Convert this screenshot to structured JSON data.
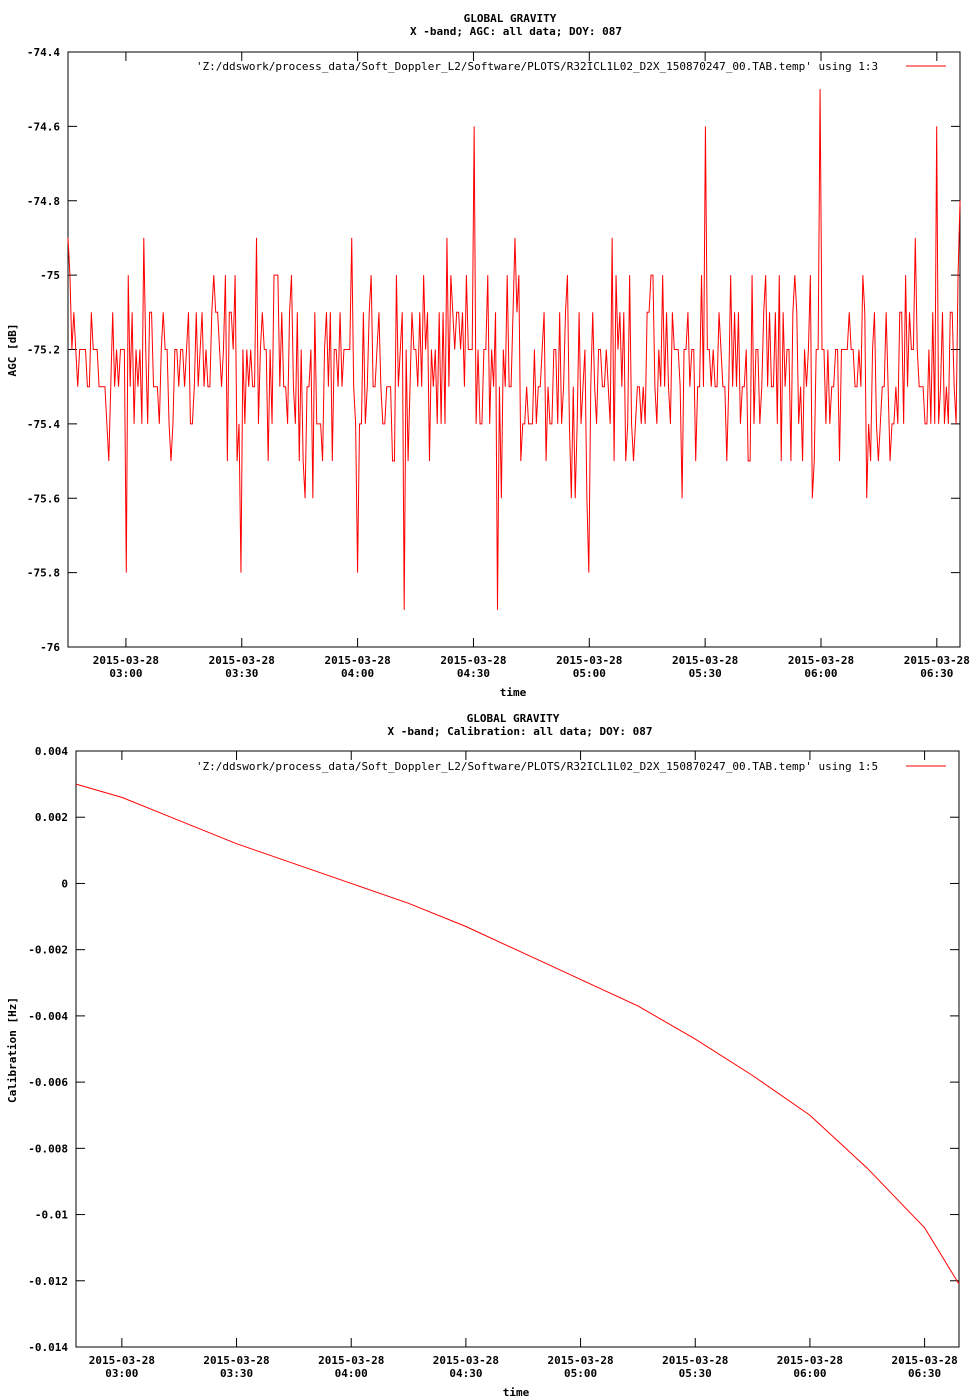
{
  "chart_data": [
    {
      "type": "line",
      "title": "GLOBAL GRAVITY",
      "subtitle": "X -band; AGC: all data; DOY: 087",
      "xlabel": "time",
      "ylabel": "AGC [dB]",
      "ylim": [
        -76,
        -74.4
      ],
      "yticks": [
        -74.4,
        -74.6,
        -74.8,
        -75,
        -75.2,
        -75.4,
        -75.6,
        -75.8,
        -76
      ],
      "ytick_labels": [
        "-74.4",
        "-74.6",
        "-74.8",
        "-75",
        "-75.2",
        "-75.4",
        "-75.6",
        "-75.8",
        "-76"
      ],
      "x_range_hours": [
        2.75,
        6.6
      ],
      "xticks_hours": [
        3.0,
        3.5,
        4.0,
        4.5,
        5.0,
        5.5,
        6.0,
        6.5
      ],
      "xtick_labels": [
        [
          "2015-03-28",
          "03:00"
        ],
        [
          "2015-03-28",
          "03:30"
        ],
        [
          "2015-03-28",
          "04:00"
        ],
        [
          "2015-03-28",
          "04:30"
        ],
        [
          "2015-03-28",
          "05:00"
        ],
        [
          "2015-03-28",
          "05:30"
        ],
        [
          "2015-03-28",
          "06:00"
        ],
        [
          "2015-03-28",
          "06:30"
        ]
      ],
      "grid": false,
      "legend_position": "top-right",
      "series": [
        {
          "name": "'Z:/ddswork/process_data/Soft_Doppler_L2/Software/PLOTS/R32ICL1L02_D2X_150870247_00.TAB.temp' using 1:3",
          "color": "#ff0000",
          "noise": true,
          "mean": -75.25,
          "min": -75.9,
          "max": -74.5,
          "samples": 460,
          "x": [
            2.75,
            3.0,
            3.5,
            4.0,
            4.2,
            4.5,
            4.6,
            5.0,
            5.5,
            6.0,
            6.5,
            6.6
          ],
          "y": [
            -74.9,
            -75.8,
            -75.8,
            -75.8,
            -75.9,
            -74.6,
            -75.9,
            -75.8,
            -74.6,
            -74.5,
            -74.6,
            -74.8
          ]
        }
      ]
    },
    {
      "type": "line",
      "title": "GLOBAL GRAVITY",
      "subtitle": "X -band; Calibration: all data; DOY: 087",
      "xlabel": "time",
      "ylabel": "Calibration [Hz]",
      "ylim": [
        -0.014,
        0.004
      ],
      "yticks": [
        0.004,
        0.002,
        0,
        -0.002,
        -0.004,
        -0.006,
        -0.008,
        -0.01,
        -0.012,
        -0.014
      ],
      "ytick_labels": [
        "0.004",
        "0.002",
        "0",
        "-0.002",
        "-0.004",
        "-0.006",
        "-0.008",
        "-0.01",
        "-0.012",
        "-0.014"
      ],
      "x_range_hours": [
        2.8,
        6.65
      ],
      "xticks_hours": [
        3.0,
        3.5,
        4.0,
        4.5,
        5.0,
        5.5,
        6.0,
        6.5
      ],
      "xtick_labels": [
        [
          "2015-03-28",
          "03:00"
        ],
        [
          "2015-03-28",
          "03:30"
        ],
        [
          "2015-03-28",
          "04:00"
        ],
        [
          "2015-03-28",
          "04:30"
        ],
        [
          "2015-03-28",
          "05:00"
        ],
        [
          "2015-03-28",
          "05:30"
        ],
        [
          "2015-03-28",
          "06:00"
        ],
        [
          "2015-03-28",
          "06:30"
        ]
      ],
      "grid": false,
      "legend_position": "top-right",
      "series": [
        {
          "name": "'Z:/ddswork/process_data/Soft_Doppler_L2/Software/PLOTS/R32ICL1L02_D2X_150870247_00.TAB.temp' using 1:5",
          "color": "#ff0000",
          "x": [
            2.8,
            3.0,
            3.25,
            3.5,
            3.75,
            4.0,
            4.25,
            4.5,
            4.75,
            5.0,
            5.25,
            5.5,
            5.75,
            6.0,
            6.25,
            6.5,
            6.65
          ],
          "y": [
            0.003,
            0.0026,
            0.0019,
            0.0012,
            0.0006,
            0.0,
            -0.0006,
            -0.0013,
            -0.0021,
            -0.0029,
            -0.0037,
            -0.0047,
            -0.0058,
            -0.007,
            -0.0086,
            -0.0104,
            -0.0121
          ]
        }
      ]
    }
  ]
}
